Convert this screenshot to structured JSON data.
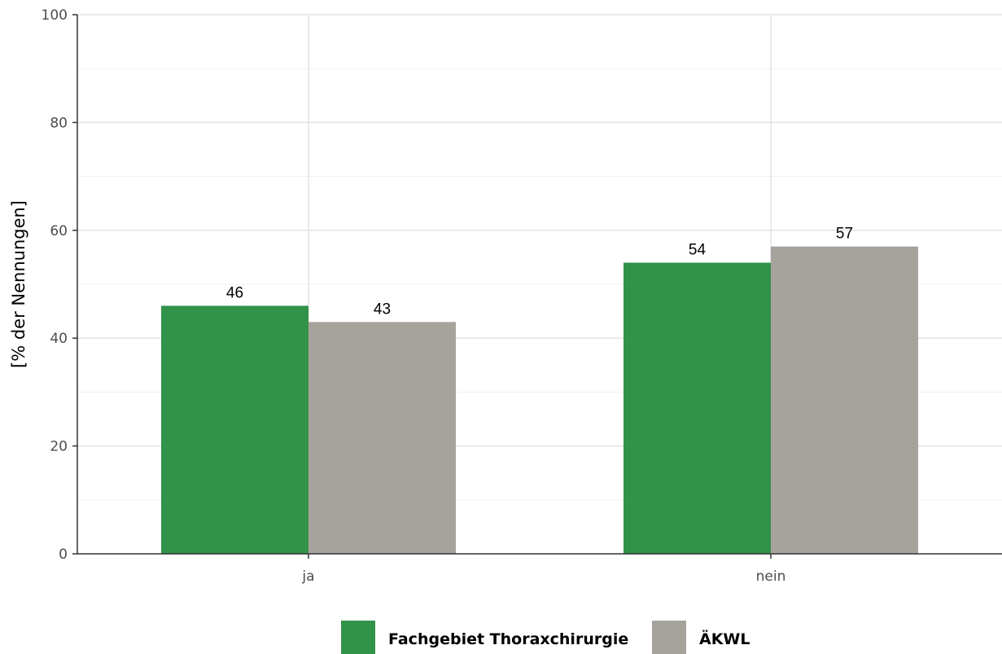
{
  "chart_data": {
    "type": "bar",
    "title": "",
    "xlabel": "",
    "ylabel": "[% der Nennungen]",
    "categories": [
      "ja",
      "nein"
    ],
    "series": [
      {
        "name": "Fachgebiet Thoraxchirurgie",
        "values": [
          46,
          54
        ],
        "labels": [
          "46",
          "54"
        ],
        "color": "#31924a"
      },
      {
        "name": "ÄKWL",
        "values": [
          43,
          57
        ],
        "labels": [
          "43",
          "57"
        ],
        "color": "#a6a39c"
      }
    ],
    "ylim": [
      0,
      100
    ],
    "yticks": [
      0,
      20,
      40,
      60,
      80,
      100
    ],
    "grid": true,
    "legend": "bottom"
  }
}
